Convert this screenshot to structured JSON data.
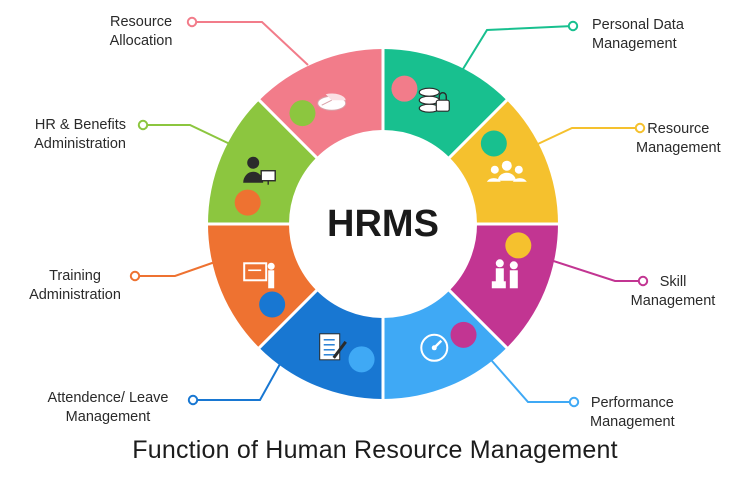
{
  "diagram": {
    "center_text": "HRMS",
    "footer_title": "Function of Human Resource Management",
    "segments": [
      {
        "id": "personal-data",
        "color": "#18c08f",
        "icon": "database-lock-icon",
        "label": [
          "Personal Data",
          "Management"
        ]
      },
      {
        "id": "resource-management",
        "color": "#f5c12e",
        "icon": "people-group-icon",
        "label": [
          "Resource",
          "Management"
        ]
      },
      {
        "id": "skill",
        "color": "#c23592",
        "icon": "training-people-icon",
        "label": [
          "Skill",
          "Management"
        ]
      },
      {
        "id": "performance",
        "color": "#3fa9f5",
        "icon": "speedometer-icon",
        "label": [
          "Performance",
          "Management"
        ]
      },
      {
        "id": "attendance-leave",
        "color": "#1877d2",
        "icon": "document-pen-icon",
        "label": [
          "Attendence/ Leave",
          "Management"
        ]
      },
      {
        "id": "training",
        "color": "#ee7231",
        "icon": "presentation-board-icon",
        "label": [
          "Training",
          "Administration"
        ]
      },
      {
        "id": "hr-benefits",
        "color": "#8cc63f",
        "icon": "user-computer-icon",
        "label": [
          "HR & Benefits",
          "Administration"
        ]
      },
      {
        "id": "resource-allocation",
        "color": "#f27c8a",
        "icon": "pie-chart-icon",
        "label": [
          "Resource",
          "Allocation"
        ]
      }
    ]
  }
}
